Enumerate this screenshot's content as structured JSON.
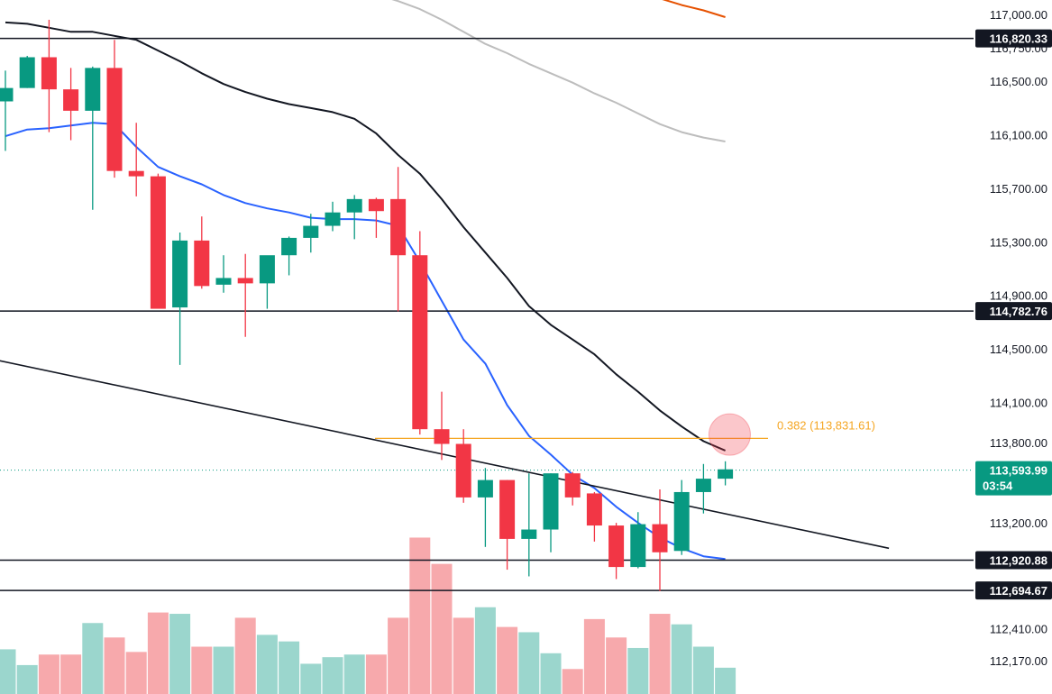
{
  "chart_data": {
    "type": "candlestick",
    "y_axis": {
      "range": [
        112050,
        117150
      ],
      "ticks": [
        "117,000.00",
        "116,750.00",
        "116,500.00",
        "116,100.00",
        "115,700.00",
        "115,300.00",
        "114,900.00",
        "114,500.00",
        "114,100.00",
        "113,800.00",
        "113,200.00",
        "112,410.00",
        "112,170.00"
      ],
      "tick_values": [
        117000,
        116750,
        116500,
        116100,
        115700,
        115300,
        114900,
        114500,
        114100,
        113800,
        113200,
        112410,
        112170
      ]
    },
    "candles": [
      {
        "o": 116350,
        "h": 116580,
        "l": 115980,
        "c": 116450,
        "v": 0.34
      },
      {
        "o": 116450,
        "h": 116690,
        "l": 116450,
        "c": 116680,
        "v": 0.22
      },
      {
        "o": 116680,
        "h": 116960,
        "l": 116120,
        "c": 116440,
        "v": 0.3
      },
      {
        "o": 116440,
        "h": 116600,
        "l": 116060,
        "c": 116280,
        "v": 0.3
      },
      {
        "o": 116280,
        "h": 116610,
        "l": 115540,
        "c": 116600,
        "v": 0.54
      },
      {
        "o": 116600,
        "h": 116810,
        "l": 115780,
        "c": 115830,
        "v": 0.43
      },
      {
        "o": 115830,
        "h": 116190,
        "l": 115640,
        "c": 115790,
        "v": 0.32
      },
      {
        "o": 115790,
        "h": 115810,
        "l": 114830,
        "c": 114800,
        "v": 0.62
      },
      {
        "o": 114810,
        "h": 115370,
        "l": 114380,
        "c": 115310,
        "v": 0.61
      },
      {
        "o": 115310,
        "h": 115490,
        "l": 114950,
        "c": 114970,
        "v": 0.36
      },
      {
        "o": 114980,
        "h": 115200,
        "l": 114920,
        "c": 115030,
        "v": 0.36
      },
      {
        "o": 115030,
        "h": 115210,
        "l": 114590,
        "c": 114990,
        "v": 0.58
      },
      {
        "o": 114990,
        "h": 115190,
        "l": 114800,
        "c": 115200,
        "v": 0.45
      },
      {
        "o": 115200,
        "h": 115340,
        "l": 115050,
        "c": 115330,
        "v": 0.4
      },
      {
        "o": 115330,
        "h": 115510,
        "l": 115220,
        "c": 115420,
        "v": 0.23
      },
      {
        "o": 115420,
        "h": 115600,
        "l": 115380,
        "c": 115520,
        "v": 0.28
      },
      {
        "o": 115520,
        "h": 115650,
        "l": 115320,
        "c": 115620,
        "v": 0.3
      },
      {
        "o": 115620,
        "h": 115630,
        "l": 115330,
        "c": 115530,
        "v": 0.3
      },
      {
        "o": 115620,
        "h": 115860,
        "l": 114780,
        "c": 115200,
        "v": 0.58
      },
      {
        "o": 115200,
        "h": 115380,
        "l": 113860,
        "c": 113900,
        "v": 1.19
      },
      {
        "o": 113900,
        "h": 114180,
        "l": 113670,
        "c": 113790,
        "v": 0.99
      },
      {
        "o": 113790,
        "h": 113900,
        "l": 113350,
        "c": 113390,
        "v": 0.58
      },
      {
        "o": 113390,
        "h": 113610,
        "l": 113020,
        "c": 113520,
        "v": 0.66
      },
      {
        "o": 113520,
        "h": 113520,
        "l": 112850,
        "c": 113080,
        "v": 0.51
      },
      {
        "o": 113080,
        "h": 113570,
        "l": 112800,
        "c": 113150,
        "v": 0.47
      },
      {
        "o": 113150,
        "h": 113570,
        "l": 112980,
        "c": 113570,
        "v": 0.31
      },
      {
        "o": 113570,
        "h": 113580,
        "l": 113330,
        "c": 113390,
        "v": 0.19
      },
      {
        "o": 113420,
        "h": 113430,
        "l": 113060,
        "c": 113180,
        "v": 0.57
      },
      {
        "o": 113180,
        "h": 113200,
        "l": 112780,
        "c": 112870,
        "v": 0.43
      },
      {
        "o": 112870,
        "h": 113280,
        "l": 112860,
        "c": 113190,
        "v": 0.35
      },
      {
        "o": 113190,
        "h": 113450,
        "l": 112690,
        "c": 112980,
        "v": 0.61
      },
      {
        "o": 112990,
        "h": 113520,
        "l": 112960,
        "c": 113430,
        "v": 0.53
      },
      {
        "o": 113430,
        "h": 113640,
        "l": 113270,
        "c": 113530,
        "v": 0.36
      },
      {
        "o": 113530,
        "h": 113660,
        "l": 113480,
        "c": 113600,
        "v": 0.2
      }
    ],
    "moving_averages": [
      {
        "color": "#2962ff",
        "values": [
          116090,
          116140,
          116150,
          116170,
          116190,
          116180,
          116010,
          115860,
          115790,
          115730,
          115650,
          115590,
          115550,
          115520,
          115480,
          115470,
          115470,
          115460,
          115420,
          115150,
          114860,
          114570,
          114390,
          114080,
          113850,
          113710,
          113560,
          113460,
          113320,
          113200,
          113090,
          113010,
          112950,
          112930
        ]
      },
      {
        "color": "#131722",
        "values": [
          116940,
          116930,
          116900,
          116870,
          116870,
          116840,
          116810,
          116730,
          116650,
          116560,
          116480,
          116420,
          116370,
          116330,
          116300,
          116270,
          116220,
          116110,
          115950,
          115810,
          115620,
          115410,
          115220,
          115030,
          114820,
          114680,
          114570,
          114460,
          114310,
          114180,
          114040,
          113920,
          113810,
          113740
        ]
      },
      {
        "color": "#bdbdbd",
        "values": [
          null,
          null,
          null,
          null,
          null,
          null,
          null,
          null,
          null,
          null,
          null,
          null,
          null,
          null,
          null,
          117220,
          117190,
          117150,
          117100,
          117040,
          116960,
          116870,
          116780,
          116710,
          116630,
          116560,
          116490,
          116410,
          116340,
          116260,
          116180,
          116120,
          116080,
          116050
        ]
      },
      {
        "color": "#e65100",
        "values": [
          null,
          null,
          null,
          null,
          null,
          null,
          null,
          null,
          null,
          null,
          null,
          null,
          null,
          null,
          null,
          null,
          null,
          null,
          null,
          null,
          null,
          null,
          null,
          null,
          null,
          null,
          117290,
          117250,
          117200,
          117160,
          117120,
          117070,
          117030,
          116980
        ]
      }
    ],
    "horizontal_levels": [
      {
        "value": 116820.33,
        "label": "116,820.33"
      },
      {
        "value": 114782.76,
        "label": "114,782.76"
      },
      {
        "value": 112920.88,
        "label": "112,920.88"
      },
      {
        "value": 112694.67,
        "label": "112,694.67"
      }
    ],
    "fib_level": {
      "value": 113831.61,
      "label": "0.382 (113,831.61)",
      "color": "#f5a623"
    },
    "trendline": {
      "from": {
        "index": -0.5,
        "value": 114420
      },
      "to": {
        "index": 40.5,
        "value": 113010
      }
    },
    "current_price": {
      "value": 113593.99,
      "label": "113,593.99",
      "countdown": "03:54",
      "color": "#089981"
    },
    "highlight_circle": {
      "index": 33.2,
      "value": 113860
    },
    "colors": {
      "up": "#089981",
      "down": "#f23645",
      "up_volume": "#9bd6cd",
      "down_volume": "#f7a9ac",
      "text": "#131722"
    }
  }
}
